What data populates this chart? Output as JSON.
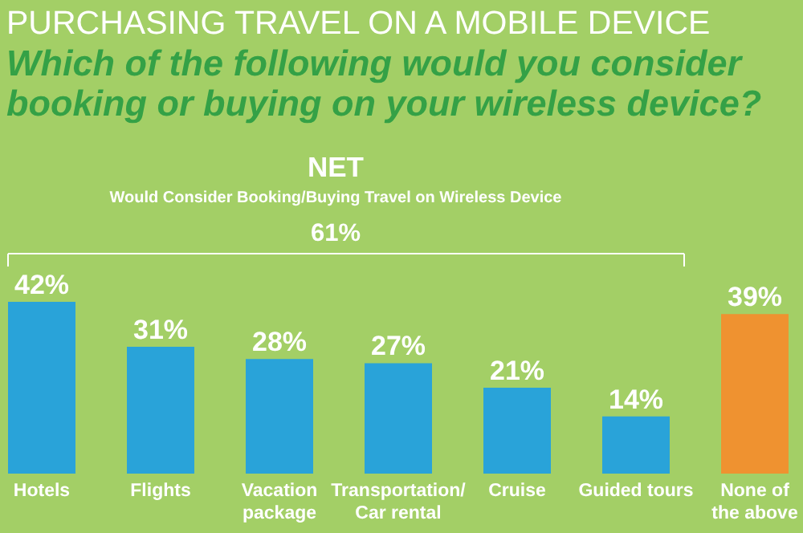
{
  "chart_data": {
    "type": "bar",
    "title": "PURCHASING TRAVEL ON A MOBILE DEVICE",
    "subtitle": "Which of the following would you consider booking or buying on your wireless device?",
    "annotations": [
      "NET",
      "Would Consider Booking/Buying Travel on Wireless Device",
      "61%"
    ],
    "categories": [
      "Hotels",
      "Flights",
      "Vacation\npackage",
      "Transportation/\nCar rental",
      "Cruise",
      "Guided tours",
      "None of\nthe above"
    ],
    "values": [
      42,
      31,
      28,
      27,
      21,
      14,
      39
    ],
    "value_labels": [
      "42%",
      "31%",
      "28%",
      "27%",
      "21%",
      "14%",
      "39%"
    ],
    "colors": [
      "#29a3d9",
      "#29a3d9",
      "#29a3d9",
      "#29a3d9",
      "#29a3d9",
      "#29a3d9",
      "#ef9230"
    ]
  }
}
